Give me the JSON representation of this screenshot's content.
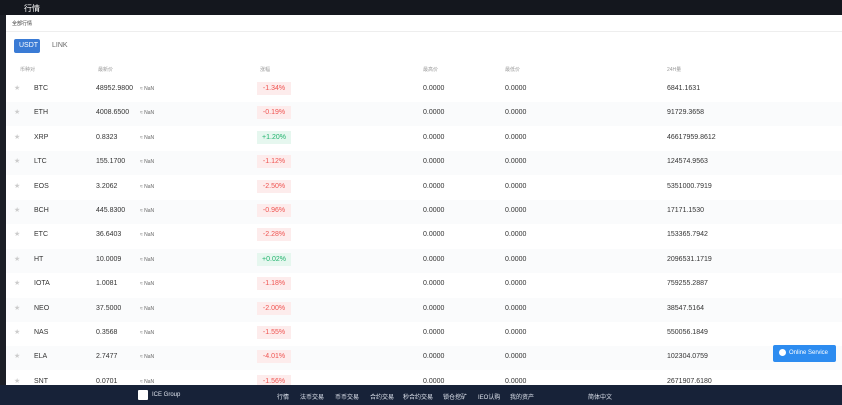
{
  "topbar": {
    "title": "行情"
  },
  "tab": "全部行情",
  "quote_tabs": [
    "USDT",
    "LINK"
  ],
  "table": {
    "headers": [
      "币种对",
      "最新价",
      "涨幅",
      "最高价",
      "最低价",
      "24H量"
    ],
    "rows": [
      [
        "BTC",
        "48952.9800",
        "≈ NaN",
        "-1.34%",
        "0.0000",
        "0.0000",
        "6841.1631"
      ],
      [
        "ETH",
        "4008.6500",
        "≈ NaN",
        "-0.19%",
        "0.0000",
        "0.0000",
        "91729.3658"
      ],
      [
        "XRP",
        "0.8323",
        "≈ NaN",
        "+1.20%",
        "0.0000",
        "0.0000",
        "46617959.8612"
      ],
      [
        "LTC",
        "155.1700",
        "≈ NaN",
        "-1.12%",
        "0.0000",
        "0.0000",
        "124574.9563"
      ],
      [
        "EOS",
        "3.2062",
        "≈ NaN",
        "-2.50%",
        "0.0000",
        "0.0000",
        "5351000.7919"
      ],
      [
        "BCH",
        "445.8300",
        "≈ NaN",
        "-0.96%",
        "0.0000",
        "0.0000",
        "17171.1530"
      ],
      [
        "ETC",
        "36.6403",
        "≈ NaN",
        "-2.28%",
        "0.0000",
        "0.0000",
        "153365.7942"
      ],
      [
        "HT",
        "10.0009",
        "≈ NaN",
        "+0.02%",
        "0.0000",
        "0.0000",
        "2096531.1719"
      ],
      [
        "IOTA",
        "1.0081",
        "≈ NaN",
        "-1.18%",
        "0.0000",
        "0.0000",
        "759255.2887"
      ],
      [
        "NEO",
        "37.5000",
        "≈ NaN",
        "-2.00%",
        "0.0000",
        "0.0000",
        "38547.5164"
      ],
      [
        "NAS",
        "0.3568",
        "≈ NaN",
        "-1.55%",
        "0.0000",
        "0.0000",
        "550056.1849"
      ],
      [
        "ELA",
        "2.7477",
        "≈ NaN",
        "-4.01%",
        "0.0000",
        "0.0000",
        "102304.0759"
      ],
      [
        "SNT",
        "0.0701",
        "≈ NaN",
        "-1.56%",
        "0.0000",
        "0.0000",
        "2671907.6180"
      ]
    ]
  },
  "online_service": "Online Service",
  "footer": {
    "brand": "ICE Group",
    "nav": [
      "行情",
      "法币交易",
      "币币交易",
      "合约交易",
      "秒合约交易",
      "锁仓挖矿",
      "IEO认购",
      "我的资产"
    ],
    "language": "简体中文"
  }
}
